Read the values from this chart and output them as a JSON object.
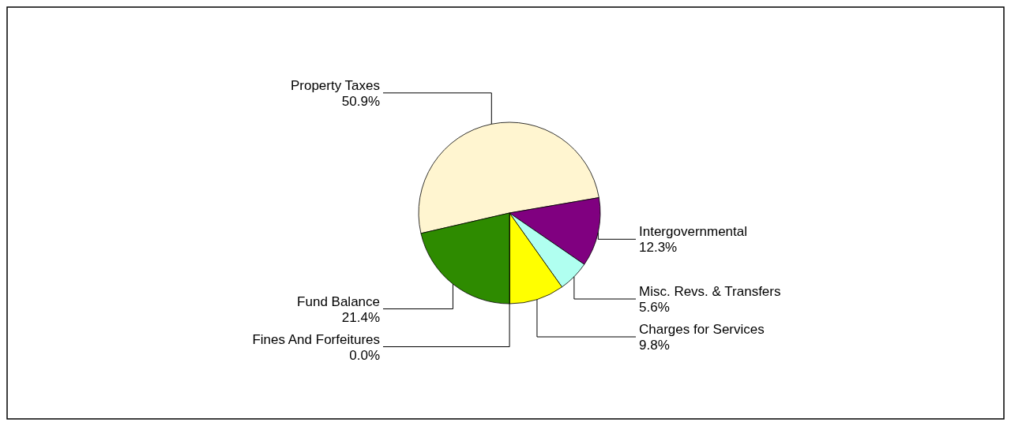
{
  "chart_data": {
    "type": "pie",
    "categories": [
      "Property Taxes",
      "Intergovernmental",
      "Misc. Revs. & Transfers",
      "Charges for Services",
      "Fines And Forfeitures",
      "Fund Balance"
    ],
    "values": [
      50.9,
      12.3,
      5.6,
      9.8,
      0.0,
      21.4
    ],
    "colors": [
      "#fff5d0",
      "#800080",
      "#b0fff0",
      "#ffff00",
      "#ff6600",
      "#2e8b00"
    ],
    "value_labels": [
      "50.9%",
      "12.3%",
      "5.6%",
      "9.8%",
      "0.0%",
      "21.4%"
    ]
  }
}
